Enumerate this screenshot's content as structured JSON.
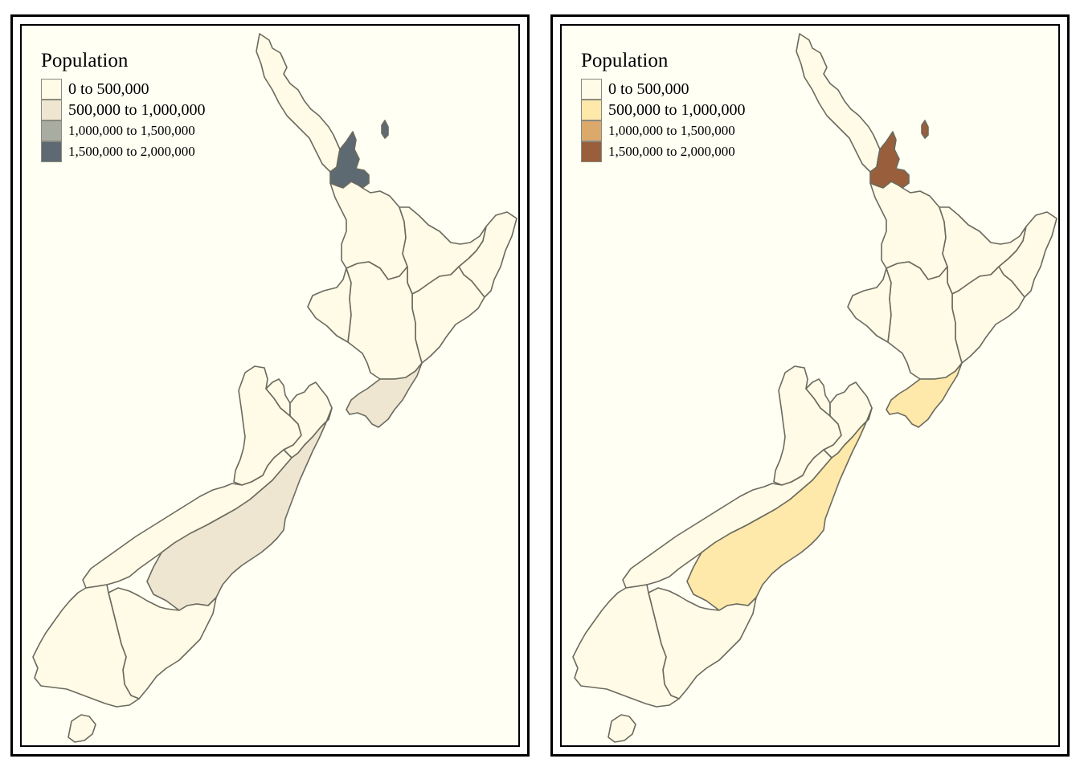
{
  "maps": [
    {
      "legend": {
        "title": "Population",
        "classes": [
          {
            "label": "0 to 500,000",
            "color": "#fffbe6"
          },
          {
            "label": "500,000 to 1,000,000",
            "color": "#efe6d1"
          },
          {
            "label": "1,000,000 to 1,500,000",
            "color": "#a9aca1"
          },
          {
            "label": "1,500,000 to 2,000,000",
            "color": "#5d6a72"
          }
        ]
      }
    },
    {
      "legend": {
        "title": "Population",
        "classes": [
          {
            "label": "0 to 500,000",
            "color": "#fffbe6"
          },
          {
            "label": "500,000 to 1,000,000",
            "color": "#fee8aa"
          },
          {
            "label": "1,000,000 to 1,500,000",
            "color": "#dba96b"
          },
          {
            "label": "1,500,000 to 2,000,000",
            "color": "#995e3b"
          }
        ]
      }
    }
  ],
  "regions": [
    {
      "name": "Northland",
      "class": 0
    },
    {
      "name": "Auckland",
      "class": 3
    },
    {
      "name": "Waikato",
      "class": 0
    },
    {
      "name": "Bay of Plenty",
      "class": 0
    },
    {
      "name": "Gisborne",
      "class": 0
    },
    {
      "name": "Hawke's Bay",
      "class": 0
    },
    {
      "name": "Taranaki",
      "class": 0
    },
    {
      "name": "Manawatu-Wanganui",
      "class": 0
    },
    {
      "name": "Wellington",
      "class": 1
    },
    {
      "name": "Nelson",
      "class": 0
    },
    {
      "name": "Tasman",
      "class": 0
    },
    {
      "name": "Marlborough",
      "class": 0
    },
    {
      "name": "West Coast",
      "class": 0
    },
    {
      "name": "Canterbury",
      "class": 1
    },
    {
      "name": "Otago",
      "class": 0
    },
    {
      "name": "Southland",
      "class": 0
    },
    {
      "name": "Stewart Island",
      "class": 0
    },
    {
      "name": "Great Barrier Island",
      "class": 3
    }
  ]
}
